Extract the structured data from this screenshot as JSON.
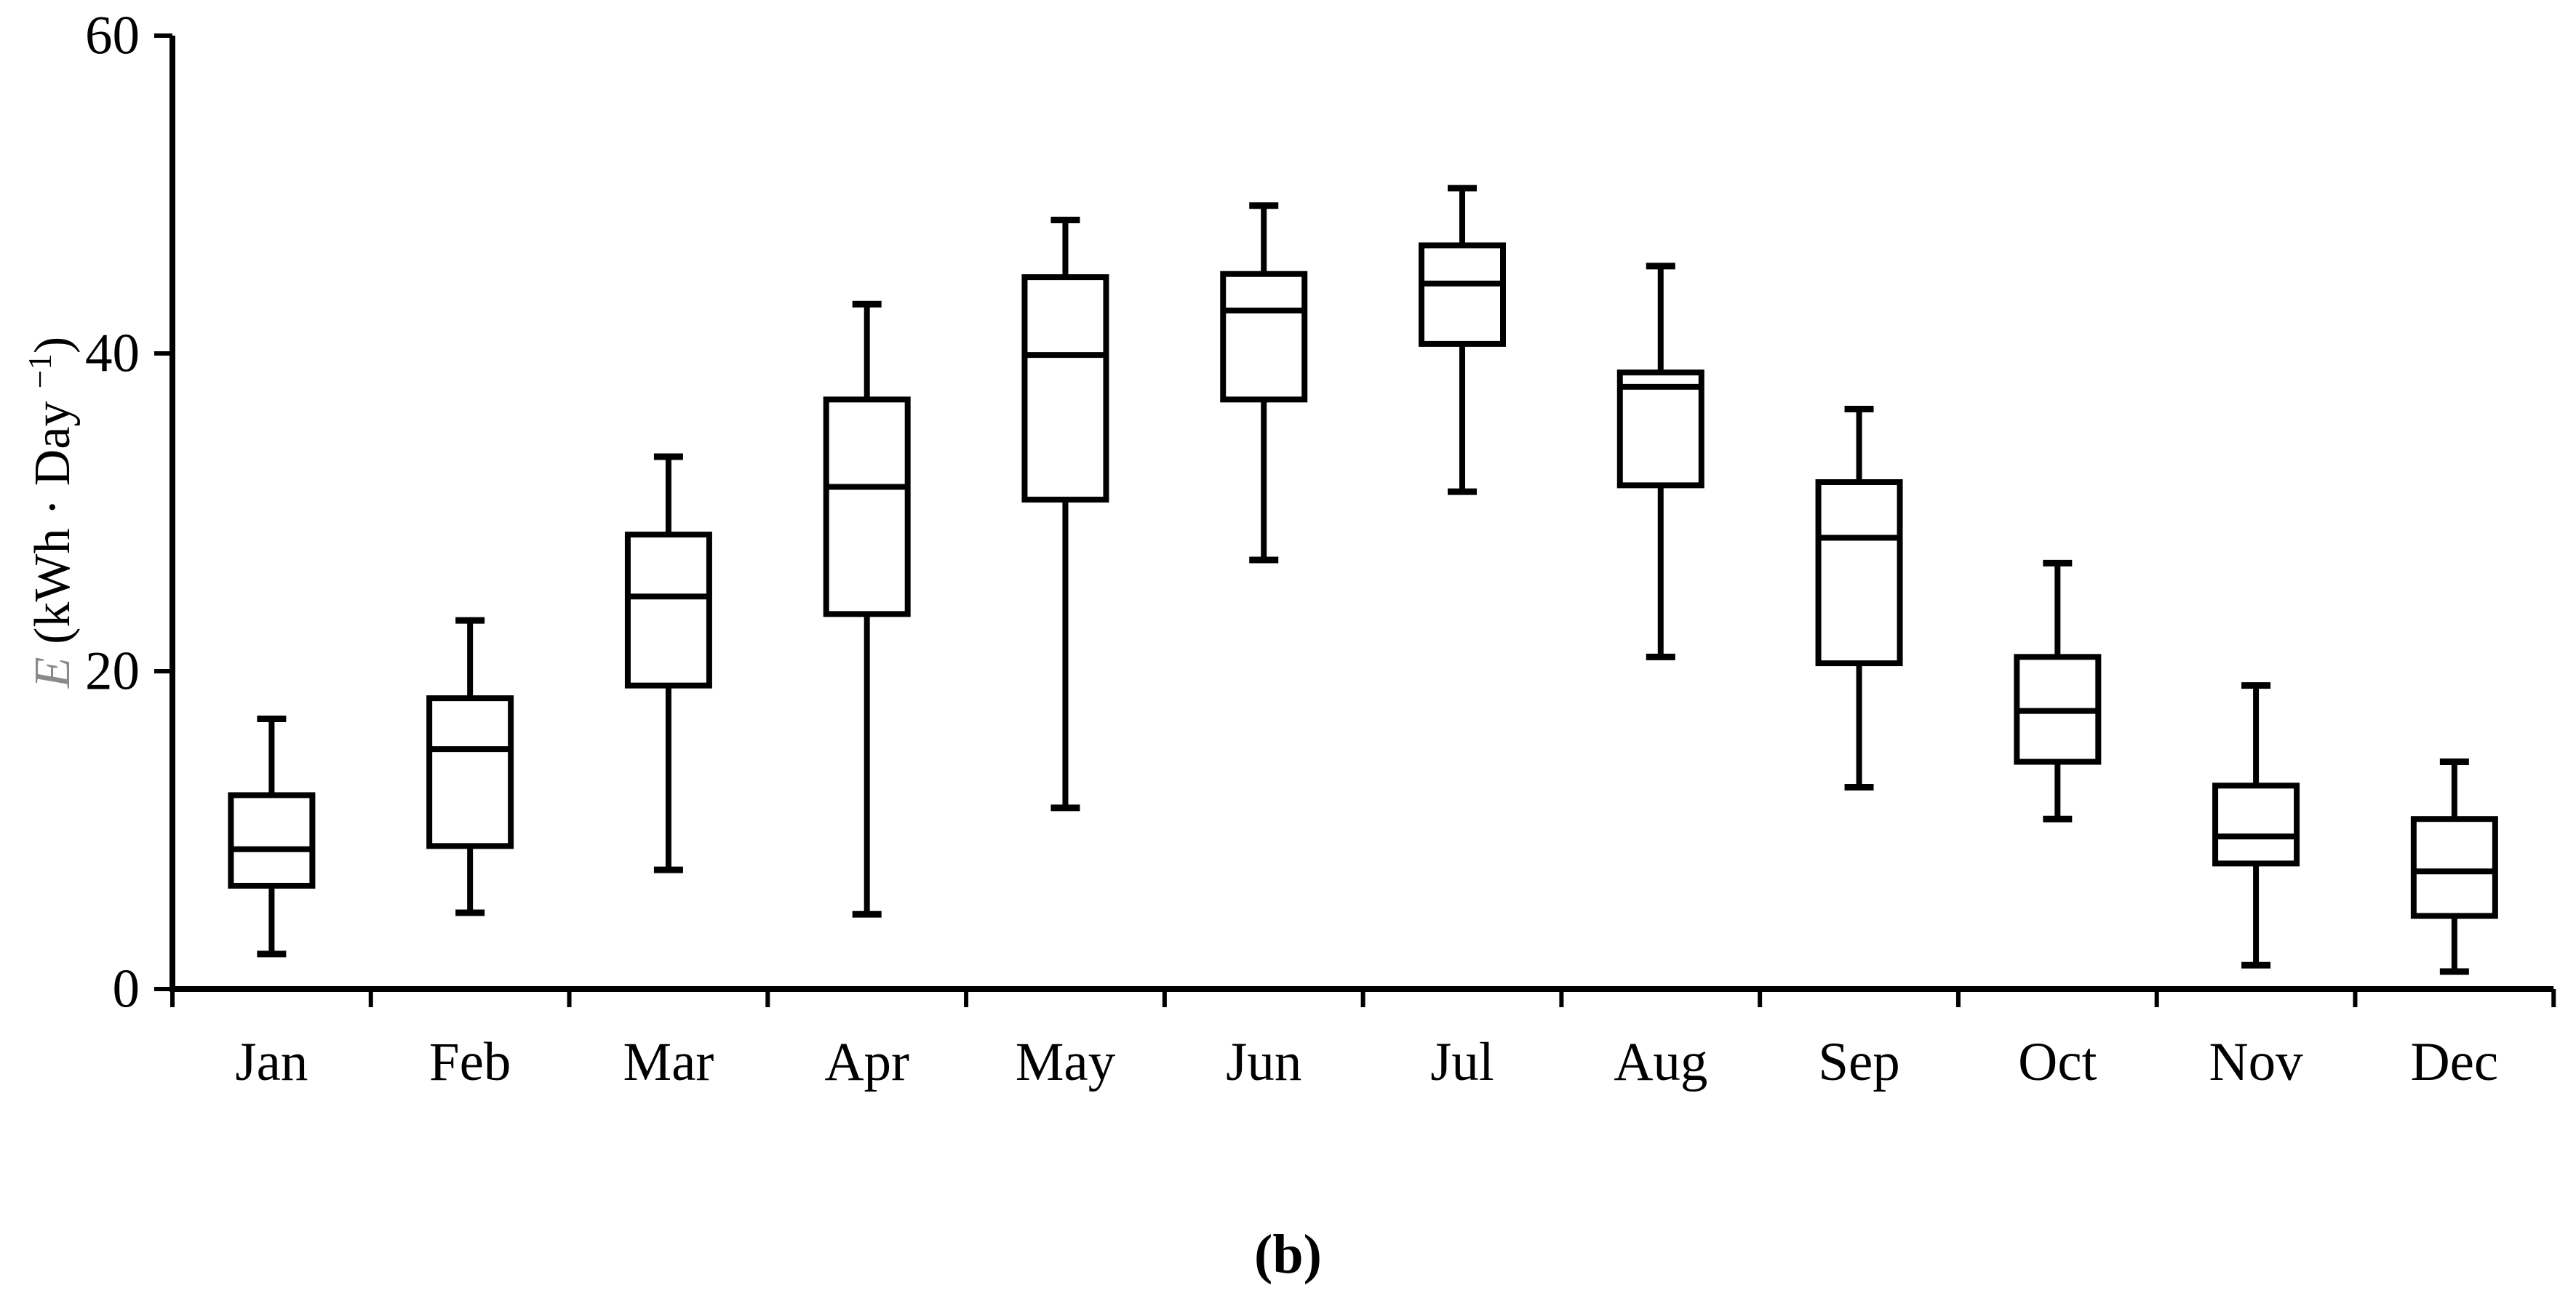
{
  "chart_data": {
    "type": "box",
    "title": "",
    "caption": "(b)",
    "categories": [
      "Jan",
      "Feb",
      "Mar",
      "Apr",
      "May",
      "Jun",
      "Jul",
      "Aug",
      "Sep",
      "Oct",
      "Nov",
      "Dec"
    ],
    "stats": [
      {
        "label": "Jan",
        "min": 2.2,
        "q1": 6.5,
        "median": 8.8,
        "q3": 12.2,
        "max": 17.0
      },
      {
        "label": "Feb",
        "min": 4.8,
        "q1": 9.0,
        "median": 15.1,
        "q3": 18.3,
        "max": 23.2
      },
      {
        "label": "Mar",
        "min": 7.5,
        "q1": 19.1,
        "median": 24.7,
        "q3": 28.6,
        "max": 33.5
      },
      {
        "label": "Apr",
        "min": 4.7,
        "q1": 23.6,
        "median": 31.6,
        "q3": 37.1,
        "max": 43.1
      },
      {
        "label": "May",
        "min": 11.4,
        "q1": 30.8,
        "median": 39.9,
        "q3": 44.8,
        "max": 48.4
      },
      {
        "label": "Jun",
        "min": 27.0,
        "q1": 37.1,
        "median": 42.7,
        "q3": 45.0,
        "max": 49.3
      },
      {
        "label": "Jul",
        "min": 31.3,
        "q1": 40.6,
        "median": 44.4,
        "q3": 46.8,
        "max": 50.4
      },
      {
        "label": "Aug",
        "min": 20.9,
        "q1": 31.7,
        "median": 37.9,
        "q3": 38.8,
        "max": 45.5
      },
      {
        "label": "Sep",
        "min": 12.7,
        "q1": 20.5,
        "median": 28.4,
        "q3": 31.9,
        "max": 36.5
      },
      {
        "label": "Oct",
        "min": 10.7,
        "q1": 14.3,
        "median": 17.5,
        "q3": 20.9,
        "max": 26.8
      },
      {
        "label": "Nov",
        "min": 1.5,
        "q1": 7.9,
        "median": 9.6,
        "q3": 12.8,
        "max": 19.1
      },
      {
        "label": "Dec",
        "min": 1.1,
        "q1": 4.6,
        "median": 7.4,
        "q3": 10.7,
        "max": 14.3
      }
    ],
    "ylabel": {
      "variable": "E",
      "unit_open": " (kWh ",
      "dot": "·",
      "unit_mid": " Day",
      "sup": "−1",
      "unit_close": ")"
    },
    "yticks": [
      "0",
      "20",
      "40",
      "60"
    ],
    "ytick_values": [
      0,
      20,
      40,
      60
    ],
    "ylim": [
      0,
      60
    ],
    "xlabel": "",
    "legend": "none",
    "grid": false,
    "colors": {
      "line": "#000000",
      "background": "#ffffff",
      "ylabel_variable": "#8a8a8a"
    }
  }
}
